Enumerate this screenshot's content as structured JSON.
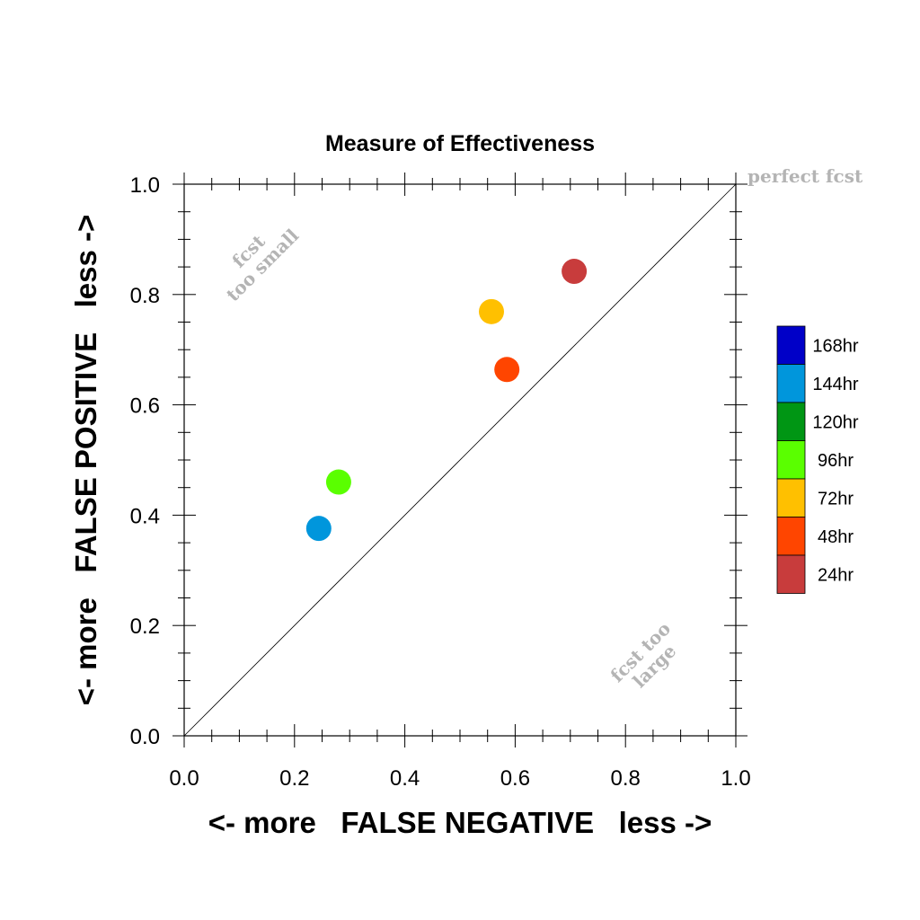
{
  "chart_data": {
    "type": "scatter",
    "title": "Measure of Effectiveness",
    "xlabel": "<- more   FALSE NEGATIVE   less ->",
    "ylabel": "<- more   FALSE POSITIVE   less ->",
    "xlim": [
      0,
      1
    ],
    "ylim": [
      0,
      1
    ],
    "xticks": [
      "0.0",
      "0.2",
      "0.4",
      "0.6",
      "0.8",
      "1.0"
    ],
    "yticks": [
      "0.0",
      "0.2",
      "0.4",
      "0.6",
      "0.8",
      "1.0"
    ],
    "grid": false,
    "diagonal": true,
    "annotations": {
      "perfect": "perfect fcst",
      "too_small_1": "fcst",
      "too_small_2": "too small",
      "too_large_1": "fcst too",
      "too_large_2": "large"
    },
    "points": [
      {
        "label": "24hr",
        "x": 0.707,
        "y": 0.842,
        "color": "#c83c3c"
      },
      {
        "label": "48hr",
        "x": 0.585,
        "y": 0.664,
        "color": "#ff4500"
      },
      {
        "label": "72hr",
        "x": 0.557,
        "y": 0.769,
        "color": "#ffc000"
      },
      {
        "label": "96hr",
        "x": 0.28,
        "y": 0.46,
        "color": "#5aff00"
      },
      {
        "label": "144hr",
        "x": 0.244,
        "y": 0.376,
        "color": "#0096dc"
      }
    ],
    "legend": {
      "position": "right",
      "entries": [
        {
          "label": "168hr",
          "color": "#0000c8"
        },
        {
          "label": "144hr",
          "color": "#0096dc"
        },
        {
          "label": "120hr",
          "color": "#009614"
        },
        {
          "label": "96hr",
          "color": "#5aff00"
        },
        {
          "label": "72hr",
          "color": "#ffc000"
        },
        {
          "label": "48hr",
          "color": "#ff4500"
        },
        {
          "label": "24hr",
          "color": "#c83c3c"
        }
      ]
    }
  }
}
